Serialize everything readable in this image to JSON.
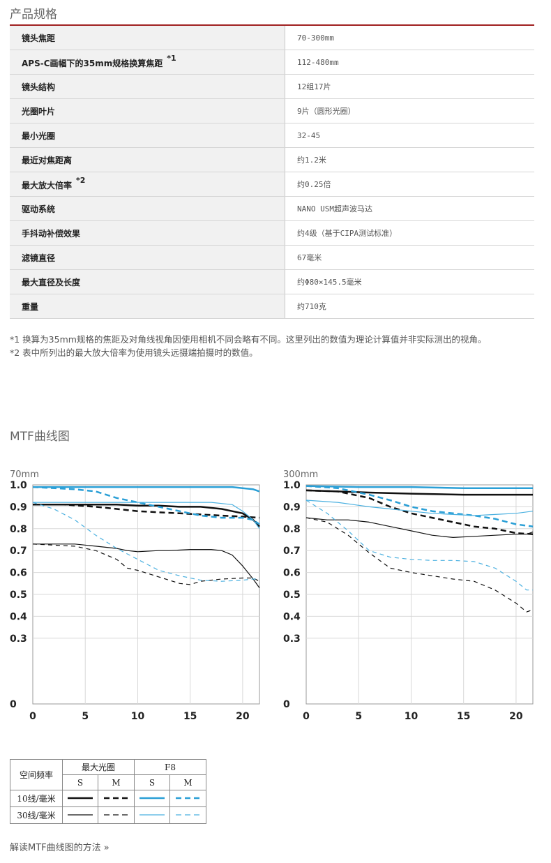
{
  "section_specs": "产品规格",
  "specs": [
    {
      "label": "镜头焦距",
      "sup": "",
      "value": "70-300mm"
    },
    {
      "label": "APS-C画幅下的35mm规格换算焦距",
      "sup": "*1",
      "value": "112-480mm"
    },
    {
      "label": "镜头结构",
      "sup": "",
      "value": "12组17片"
    },
    {
      "label": "光圈叶片",
      "sup": "",
      "value": "9片（圆形光圈）"
    },
    {
      "label": "最小光圈",
      "sup": "",
      "value": "32-45"
    },
    {
      "label": "最近对焦距离",
      "sup": "",
      "value": "约1.2米"
    },
    {
      "label": "最大放大倍率",
      "sup": "*2",
      "value": "约0.25倍"
    },
    {
      "label": "驱动系统",
      "sup": "",
      "value": "NANO USM超声波马达"
    },
    {
      "label": "手抖动补偿效果",
      "sup": "",
      "value": "约4级（基于CIPA测试标准）"
    },
    {
      "label": "滤镜直径",
      "sup": "",
      "value": "67毫米"
    },
    {
      "label": "最大直径及长度",
      "sup": "",
      "value": "约Φ80×145.5毫米"
    },
    {
      "label": "重量",
      "sup": "",
      "value": "约710克"
    }
  ],
  "notes": [
    "*1 换算为35mm规格的焦距及对角线视角因使用相机不同会略有不同。这里列出的数值为理论计算值并非实际测出的视角。",
    "*2 表中所列出的最大放大倍率为使用镜头远摄端拍摄时的数值。"
  ],
  "section_mtf": "MTF曲线图",
  "colors": {
    "black": "#111111",
    "blue": "#2a9fd6",
    "lightblue": "#4ab0e0",
    "rule": "#a02020"
  },
  "chart_data": [
    {
      "type": "line",
      "title": "70mm",
      "xlim": [
        0,
        21.6
      ],
      "ylim": [
        0,
        1.0
      ],
      "xticks": [
        "0",
        "5",
        "10",
        "15",
        "20"
      ],
      "yticks": [
        "0",
        "0.3",
        "0.4",
        "0.5",
        "0.6",
        "0.7",
        "0.8",
        "0.9",
        "1.0"
      ],
      "series": [
        {
          "color": "black",
          "style": "solid",
          "width": 2.5,
          "x": [
            0,
            3,
            6,
            8,
            10,
            12,
            14,
            16,
            18,
            19,
            20,
            21,
            21.6
          ],
          "y": [
            0.91,
            0.91,
            0.91,
            0.91,
            0.905,
            0.905,
            0.9,
            0.9,
            0.89,
            0.88,
            0.87,
            0.84,
            0.81
          ]
        },
        {
          "color": "black",
          "style": "dash",
          "width": 2.5,
          "x": [
            0,
            3,
            6,
            8,
            10,
            12,
            14,
            16,
            18,
            20,
            21.6
          ],
          "y": [
            0.91,
            0.91,
            0.9,
            0.89,
            0.88,
            0.875,
            0.87,
            0.865,
            0.86,
            0.855,
            0.85
          ]
        },
        {
          "color": "blue",
          "style": "solid",
          "width": 2.5,
          "x": [
            0,
            5,
            10,
            15,
            19,
            20,
            21,
            21.6
          ],
          "y": [
            0.99,
            0.99,
            0.99,
            0.99,
            0.99,
            0.985,
            0.98,
            0.97
          ]
        },
        {
          "color": "blue",
          "style": "dash",
          "width": 2.5,
          "x": [
            0,
            4,
            6,
            8,
            10,
            12,
            14,
            16,
            18,
            20,
            21,
            21.6
          ],
          "y": [
            0.99,
            0.98,
            0.97,
            0.94,
            0.92,
            0.9,
            0.88,
            0.86,
            0.85,
            0.85,
            0.84,
            0.82
          ]
        },
        {
          "color": "black",
          "style": "solid",
          "width": 1.2,
          "x": [
            0,
            4,
            6,
            8,
            9,
            10,
            12,
            13,
            15,
            17,
            18,
            19,
            20,
            21,
            21.6
          ],
          "y": [
            0.73,
            0.73,
            0.72,
            0.71,
            0.7,
            0.695,
            0.7,
            0.7,
            0.705,
            0.705,
            0.7,
            0.68,
            0.63,
            0.57,
            0.53
          ]
        },
        {
          "color": "black",
          "style": "dash",
          "width": 1.2,
          "x": [
            0,
            4,
            6,
            8,
            9,
            10,
            12,
            14,
            15,
            16,
            18,
            20,
            21,
            21.6
          ],
          "y": [
            0.73,
            0.72,
            0.7,
            0.66,
            0.62,
            0.61,
            0.58,
            0.55,
            0.545,
            0.56,
            0.57,
            0.575,
            0.575,
            0.56
          ]
        },
        {
          "color": "lightblue",
          "style": "solid",
          "width": 1.2,
          "x": [
            0,
            5,
            10,
            15,
            17,
            18,
            19,
            20,
            21,
            21.6
          ],
          "y": [
            0.92,
            0.92,
            0.92,
            0.92,
            0.92,
            0.915,
            0.91,
            0.88,
            0.84,
            0.8
          ]
        },
        {
          "color": "lightblue",
          "style": "dash",
          "width": 1.2,
          "x": [
            0,
            2,
            4,
            6,
            8,
            10,
            12,
            14,
            16,
            18,
            20,
            21,
            21.6
          ],
          "y": [
            0.92,
            0.89,
            0.84,
            0.77,
            0.71,
            0.66,
            0.61,
            0.585,
            0.565,
            0.56,
            0.565,
            0.57,
            0.57
          ]
        }
      ]
    },
    {
      "type": "line",
      "title": "300mm",
      "xlim": [
        0,
        21.6
      ],
      "ylim": [
        0,
        1.0
      ],
      "xticks": [
        "0",
        "5",
        "10",
        "15",
        "20"
      ],
      "yticks": [
        "0",
        "0.3",
        "0.4",
        "0.5",
        "0.6",
        "0.7",
        "0.8",
        "0.9",
        "1.0"
      ],
      "series": [
        {
          "color": "black",
          "style": "solid",
          "width": 2.5,
          "x": [
            0,
            3,
            6,
            10,
            15,
            20,
            21.6
          ],
          "y": [
            0.975,
            0.97,
            0.965,
            0.96,
            0.955,
            0.955,
            0.955
          ]
        },
        {
          "color": "black",
          "style": "dash",
          "width": 2.5,
          "x": [
            0,
            3,
            6,
            8,
            10,
            12,
            14,
            16,
            18,
            20,
            21.6
          ],
          "y": [
            0.975,
            0.97,
            0.94,
            0.9,
            0.87,
            0.85,
            0.83,
            0.81,
            0.8,
            0.78,
            0.775
          ]
        },
        {
          "color": "blue",
          "style": "solid",
          "width": 2.5,
          "x": [
            0,
            5,
            10,
            15,
            20,
            21.6
          ],
          "y": [
            0.995,
            0.99,
            0.99,
            0.985,
            0.985,
            0.985
          ]
        },
        {
          "color": "blue",
          "style": "dash",
          "width": 2.5,
          "x": [
            0,
            3,
            6,
            8,
            10,
            12,
            14,
            16,
            18,
            20,
            21.6
          ],
          "y": [
            0.995,
            0.985,
            0.955,
            0.93,
            0.9,
            0.88,
            0.87,
            0.86,
            0.845,
            0.82,
            0.81
          ]
        },
        {
          "color": "black",
          "style": "solid",
          "width": 1.2,
          "x": [
            0,
            2,
            4,
            6,
            8,
            10,
            12,
            14,
            16,
            18,
            20,
            21,
            21.6
          ],
          "y": [
            0.85,
            0.84,
            0.84,
            0.83,
            0.81,
            0.79,
            0.77,
            0.76,
            0.765,
            0.77,
            0.775,
            0.775,
            0.785
          ]
        },
        {
          "color": "black",
          "style": "dash",
          "width": 1.2,
          "x": [
            0,
            2,
            4,
            6,
            8,
            10,
            12,
            14,
            16,
            18,
            20,
            21,
            21.6
          ],
          "y": [
            0.85,
            0.83,
            0.77,
            0.69,
            0.62,
            0.6,
            0.585,
            0.57,
            0.56,
            0.52,
            0.46,
            0.42,
            0.43
          ]
        },
        {
          "color": "lightblue",
          "style": "solid",
          "width": 1.2,
          "x": [
            0,
            3,
            6,
            8,
            10,
            12,
            14,
            16,
            18,
            20,
            21.6
          ],
          "y": [
            0.93,
            0.92,
            0.9,
            0.89,
            0.88,
            0.87,
            0.865,
            0.86,
            0.865,
            0.87,
            0.88
          ]
        },
        {
          "color": "lightblue",
          "style": "dash",
          "width": 1.2,
          "x": [
            0,
            2,
            4,
            6,
            8,
            10,
            12,
            14,
            16,
            18,
            20,
            21,
            21.6
          ],
          "y": [
            0.93,
            0.87,
            0.79,
            0.7,
            0.67,
            0.66,
            0.655,
            0.655,
            0.65,
            0.62,
            0.56,
            0.52,
            0.52
          ]
        }
      ]
    }
  ],
  "legend": {
    "row_header": "空间频率",
    "group_open": "最大光圈",
    "group_f8": "F8",
    "s": "S",
    "m": "M",
    "row_10": "10线/毫米",
    "row_30": "30线/毫米"
  },
  "link_how_to_read": "解读MTF曲线图的方法 »"
}
